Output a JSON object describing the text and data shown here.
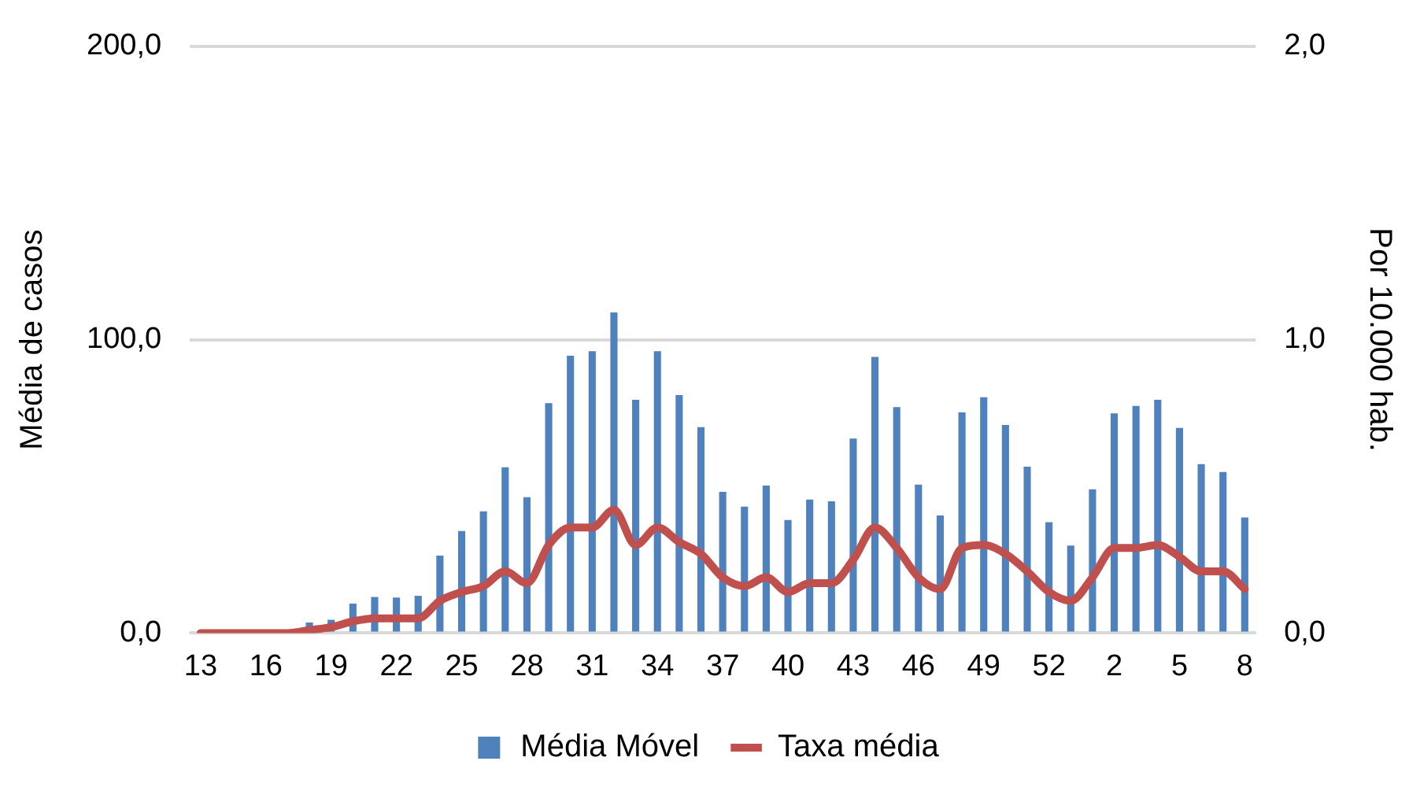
{
  "chart_data": {
    "type": "bar",
    "categories": [
      "13",
      null,
      null,
      "16",
      null,
      null,
      "19",
      null,
      null,
      "22",
      null,
      null,
      "25",
      null,
      null,
      "28",
      null,
      null,
      "31",
      null,
      null,
      "34",
      null,
      null,
      "37",
      null,
      null,
      "40",
      null,
      null,
      "43",
      null,
      null,
      "46",
      null,
      null,
      "49",
      null,
      null,
      "52",
      null,
      null,
      "2",
      null,
      null,
      "5",
      null,
      null,
      "8"
    ],
    "series": [
      {
        "name": "Média Móvel",
        "color": "#4f81bd",
        "values": [
          0,
          0,
          0,
          0,
          0,
          3.6,
          4.5,
          10,
          12.3,
          12.1,
          12.7,
          26.4,
          34.8,
          41.5,
          56.5,
          46.3,
          78.4,
          94.5,
          96.1,
          109.3,
          79.5,
          96.1,
          81.1,
          70.2,
          48.1,
          43.1,
          50.3,
          38.5,
          45.5,
          44.9,
          66.3,
          94.1,
          77.0,
          50.6,
          40.1,
          75.2,
          80.4,
          70.9,
          56.7,
          37.8,
          29.8,
          49.0,
          74.9,
          77.4,
          79.5,
          69.9,
          57.6,
          54.9,
          39.4
        ]
      },
      {
        "name": "Taxa média",
        "type": "line",
        "axis": "y2",
        "color": "#c0504d",
        "values": [
          0,
          0,
          0,
          0,
          0,
          0.01,
          0.02,
          0.04,
          0.05,
          0.05,
          0.05,
          0.11,
          0.14,
          0.16,
          0.21,
          0.17,
          0.3,
          0.36,
          0.36,
          0.42,
          0.3,
          0.36,
          0.31,
          0.27,
          0.19,
          0.16,
          0.19,
          0.14,
          0.17,
          0.17,
          0.25,
          0.36,
          0.29,
          0.19,
          0.15,
          0.29,
          0.3,
          0.27,
          0.21,
          0.14,
          0.11,
          0.19,
          0.29,
          0.29,
          0.3,
          0.26,
          0.21,
          0.21,
          0.15
        ]
      }
    ],
    "ylabel": "Média de casos",
    "y2label": "Por 10.000 hab.",
    "ylim": [
      0,
      200
    ],
    "yticks": [
      {
        "value": 0,
        "label": "0,0"
      },
      {
        "value": 100,
        "label": "100,0"
      },
      {
        "value": 200,
        "label": "200,0"
      }
    ],
    "y2lim": [
      0,
      2
    ],
    "y2ticks": [
      {
        "value": 0,
        "label": "0,0"
      },
      {
        "value": 1,
        "label": "1,0"
      },
      {
        "value": 2,
        "label": "2,0"
      }
    ],
    "grid": "y",
    "legend": "bottom",
    "marker": "none",
    "line_style": "solid"
  }
}
